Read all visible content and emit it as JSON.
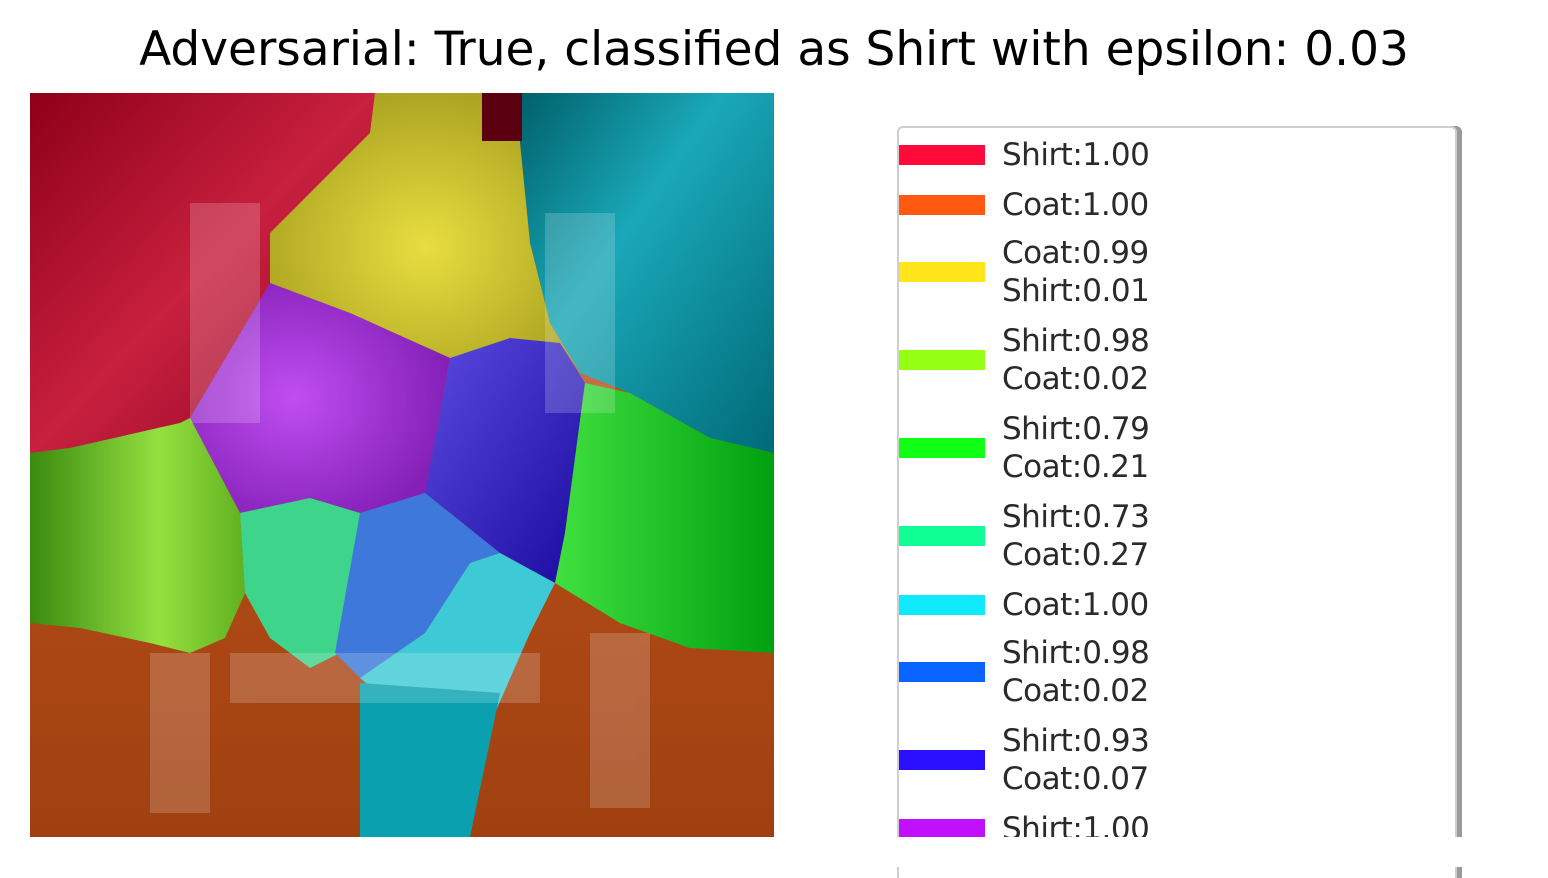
{
  "title": "Adversarial: True, classified as Shirt with epsilon: 0.03",
  "segments": [
    {
      "color": "#ff0a3a",
      "lines": [
        "Shirt:1.00"
      ]
    },
    {
      "color": "#ff5a10",
      "lines": [
        "Coat:1.00"
      ]
    },
    {
      "color": "#ffe51a",
      "lines": [
        "Coat:0.99",
        "Shirt:0.01"
      ]
    },
    {
      "color": "#95ff14",
      "lines": [
        "Shirt:0.98",
        "Coat:0.02"
      ]
    },
    {
      "color": "#10ff14",
      "lines": [
        "Shirt:0.79",
        "Coat:0.21"
      ]
    },
    {
      "color": "#10ff95",
      "lines": [
        "Shirt:0.73",
        "Coat:0.27"
      ]
    },
    {
      "color": "#10eaff",
      "lines": [
        "Coat:1.00"
      ]
    },
    {
      "color": "#0a64ff",
      "lines": [
        "Shirt:0.98",
        "Coat:0.02"
      ]
    },
    {
      "color": "#2a10ff",
      "lines": [
        "Shirt:0.93",
        "Coat:0.07"
      ]
    },
    {
      "color": "#c010ff",
      "lines": [
        "Shirt:1.00"
      ]
    }
  ]
}
